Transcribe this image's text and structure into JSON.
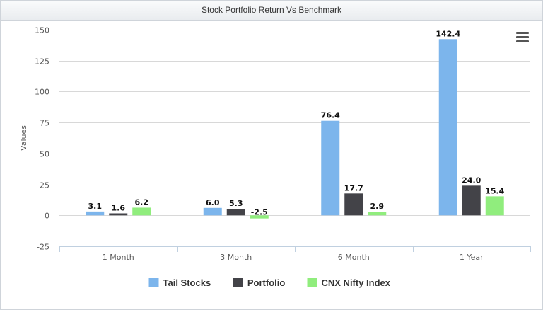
{
  "header": {
    "title": "Stock Portfolio Return Vs Benchmark"
  },
  "menu_icon": "hamburger-menu-icon",
  "chart_data": {
    "type": "bar",
    "title": "Stock Portfolio Return Vs Benchmark",
    "xlabel": "",
    "ylabel": "Values",
    "ylim": [
      -25,
      150
    ],
    "yticks": [
      -25,
      0,
      25,
      50,
      75,
      100,
      125,
      150
    ],
    "categories": [
      "1 Month",
      "3 Month",
      "6 Month",
      "1 Year"
    ],
    "series": [
      {
        "name": "Tail Stocks",
        "color": "#7cb5ec",
        "values": [
          3.1,
          6.0,
          76.4,
          142.4
        ]
      },
      {
        "name": "Portfolio",
        "color": "#434348",
        "values": [
          1.6,
          5.3,
          17.7,
          24.0
        ]
      },
      {
        "name": "CNX Nifty Index",
        "color": "#90ed7d",
        "values": [
          6.2,
          -2.5,
          2.9,
          15.4
        ]
      }
    ],
    "grid": true,
    "legend_position": "bottom-center",
    "data_labels": true
  }
}
